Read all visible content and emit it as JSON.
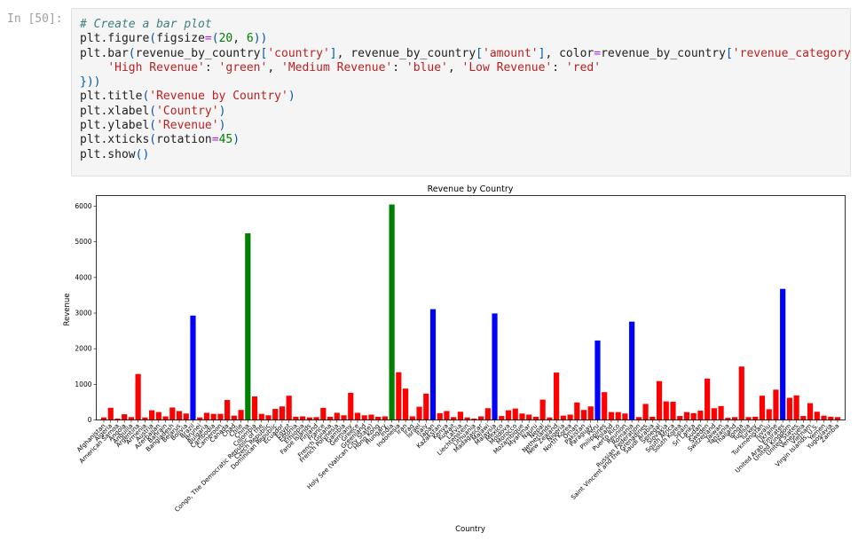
{
  "notebook": {
    "prompt": "In [50]:",
    "code_lines": [
      "# Create a bar plot",
      "plt.figure(figsize=(20, 6))",
      "plt.bar(revenue_by_country['country'], revenue_by_country['amount'], color=revenue_by_country['revenue_category'].map({",
      "    'High Revenue': 'green', 'Medium Revenue': 'blue', 'Low Revenue': 'red'",
      "}))",
      "plt.title('Revenue by Country')",
      "plt.xlabel('Country')",
      "plt.ylabel('Revenue')",
      "plt.xticks(rotation=45)",
      "plt.show()"
    ]
  },
  "colors": {
    "High Revenue": "#008000",
    "Medium Revenue": "#0000ff",
    "Low Revenue": "#ff0000"
  },
  "chart_data": {
    "type": "bar",
    "title": "Revenue by Country",
    "xlabel": "Country",
    "ylabel": "Revenue",
    "ylim": [
      0,
      6300
    ],
    "yticks": [
      0,
      1000,
      2000,
      3000,
      4000,
      5000,
      6000
    ],
    "grid": false,
    "categories": [
      "Afghanistan",
      "Algeria",
      "American Samoa",
      "Angola",
      "Anguilla",
      "Argentina",
      "Armenia",
      "Austria",
      "Azerbaijan",
      "Bahrain",
      "Bangladesh",
      "Belarus",
      "Bolivia",
      "Brazil",
      "Brunei",
      "Bulgaria",
      "Cambodia",
      "Cameroon",
      "Canada",
      "Chad",
      "Chile",
      "China",
      "Colombia",
      "Congo, The Democratic Republic of the",
      "Czech Republic",
      "Dominican Republic",
      "Ecuador",
      "Egypt",
      "Estonia",
      "Ethiopia",
      "Faroe Islands",
      "Finland",
      "France",
      "French Guiana",
      "French Polynesia",
      "Gambia",
      "Germany",
      "Greece",
      "Greenland",
      "Holy See (Vatican City State)",
      "Hong Kong",
      "Hungary",
      "India",
      "Indonesia",
      "Iran",
      "Iraq",
      "Israel",
      "Italy",
      "Japan",
      "Kazakstan",
      "Kenya",
      "Kuwait",
      "Latvia",
      "Liechtenstein",
      "Lithuania",
      "Madagascar",
      "Malawi",
      "Malaysia",
      "Mexico",
      "Moldova",
      "Morocco",
      "Mozambique",
      "Myanmar",
      "Nauru",
      "Nepal",
      "Netherlands",
      "New Zealand",
      "Nigeria",
      "North Korea",
      "Oman",
      "Pakistan",
      "Paraguay",
      "Peru",
      "Philippines",
      "Poland",
      "Puerto Rico",
      "Reunion",
      "Romania",
      "Russian Federation",
      "Saint Vincent and the Grenadines",
      "Saudi Arabia",
      "Senegal",
      "Slovakia",
      "South Africa",
      "South Korea",
      "Spain",
      "Sri Lanka",
      "Sudan",
      "Sweden",
      "Switzerland",
      "Taiwan",
      "Tanzania",
      "Thailand",
      "Tonga",
      "Tunisia",
      "Turkey",
      "Turkmenistan",
      "Tuvalu",
      "Ukraine",
      "United Arab Emirates",
      "United Kingdom",
      "United States",
      "Venezuela",
      "Vietnam",
      "Virgin Islands, U.S.",
      "Yemen",
      "Yugoslavia",
      "Zambia"
    ],
    "tick_labels": [
      "Afghanistan",
      "Algeria",
      "American Samoa",
      "Angola",
      "Anguilla",
      "Argentina",
      "Armenia",
      "Austria",
      "Azerbaijan",
      "Bahrain",
      "Bangladesh",
      "Belarus",
      "Bolivia",
      "Brazil",
      "Brunei",
      "Bulgaria",
      "Cambodia",
      "Cameroon",
      "Canada",
      "Chad",
      "Chile",
      "China",
      "Colombia",
      "Congo, The Democratic Republic of the",
      "Czech Republic",
      "Dominican Republic",
      "Ecuador",
      "Egypt",
      "Estonia",
      "Ethiopia",
      "Faroe Islands",
      "Finland",
      "France",
      "French Guiana",
      "French Polynesia",
      "Gambia",
      "Germany",
      "Greece",
      "Greenland",
      "Holy See (Vatican City State)",
      "Hong Kong",
      "Hungary",
      "India",
      "Indonesia",
      "Iran",
      "Iraq",
      "Israel",
      "Italy",
      "Japan",
      "Kazakstan",
      "Kenya",
      "Kuwait",
      "Latvia",
      "Liechtenstein",
      "Lithuania",
      "Madagascar",
      "Malawi",
      "Malaysia",
      "Mexico",
      "Moldova",
      "Morocco",
      "Mozambique",
      "Myanmar",
      "Nauru",
      "Nepal",
      "Netherlands",
      "New Zealand",
      "Nigeria",
      "North Korea",
      "Oman",
      "Pakistan",
      "Paraguay",
      "Peru",
      "Philippines",
      "Poland",
      "Puerto Rico",
      "Reunion",
      "Romania",
      "Russian Federation",
      "Saint Vincent and the Grenadines",
      "Saudi Arabia",
      "Senegal",
      "Slovakia",
      "South Africa",
      "South Korea",
      "Spain",
      "Sri Lanka",
      "Sudan",
      "Sweden",
      "Switzerland",
      "Taiwan",
      "Tanzania",
      "Thailand",
      "Tonga",
      "Tunisia",
      "Turkey",
      "Turkmenistan",
      "Tuvalu",
      "Ukraine",
      "United Arab Emirates",
      "United Kingdom",
      "United States",
      "Venezuela",
      "Vietnam",
      "Virgin Islands, U.S.",
      "Yemen",
      "Yugoslavia",
      "Zambia"
    ],
    "values": [
      70,
      340,
      40,
      160,
      80,
      1290,
      70,
      270,
      220,
      100,
      350,
      250,
      180,
      2930,
      70,
      200,
      170,
      170,
      560,
      120,
      280,
      5240,
      660,
      170,
      130,
      310,
      380,
      680,
      90,
      100,
      70,
      80,
      340,
      90,
      200,
      130,
      760,
      200,
      130,
      150,
      90,
      100,
      6050,
      1340,
      880,
      100,
      370,
      740,
      3110,
      190,
      250,
      80,
      230,
      70,
      40,
      100,
      330,
      2990,
      110,
      270,
      320,
      180,
      150,
      90,
      570,
      70,
      1330,
      120,
      150,
      490,
      280,
      380,
      2230,
      780,
      220,
      220,
      180,
      2760,
      80,
      450,
      90,
      1090,
      520,
      510,
      110,
      220,
      190,
      260,
      1160,
      330,
      390,
      60,
      80,
      1500,
      80,
      90,
      680,
      300,
      850,
      3680,
      620,
      690,
      110,
      470,
      230,
      120,
      90,
      80
    ],
    "revenue_category": [
      "Low Revenue",
      "Low Revenue",
      "Low Revenue",
      "Low Revenue",
      "Low Revenue",
      "Low Revenue",
      "Low Revenue",
      "Low Revenue",
      "Low Revenue",
      "Low Revenue",
      "Low Revenue",
      "Low Revenue",
      "Low Revenue",
      "Medium Revenue",
      "Low Revenue",
      "Low Revenue",
      "Low Revenue",
      "Low Revenue",
      "Low Revenue",
      "Low Revenue",
      "Low Revenue",
      "High Revenue",
      "Low Revenue",
      "Low Revenue",
      "Low Revenue",
      "Low Revenue",
      "Low Revenue",
      "Low Revenue",
      "Low Revenue",
      "Low Revenue",
      "Low Revenue",
      "Low Revenue",
      "Low Revenue",
      "Low Revenue",
      "Low Revenue",
      "Low Revenue",
      "Low Revenue",
      "Low Revenue",
      "Low Revenue",
      "Low Revenue",
      "Low Revenue",
      "Low Revenue",
      "High Revenue",
      "Low Revenue",
      "Low Revenue",
      "Low Revenue",
      "Low Revenue",
      "Low Revenue",
      "Medium Revenue",
      "Low Revenue",
      "Low Revenue",
      "Low Revenue",
      "Low Revenue",
      "Low Revenue",
      "Low Revenue",
      "Low Revenue",
      "Low Revenue",
      "Medium Revenue",
      "Low Revenue",
      "Low Revenue",
      "Low Revenue",
      "Low Revenue",
      "Low Revenue",
      "Low Revenue",
      "Low Revenue",
      "Low Revenue",
      "Low Revenue",
      "Low Revenue",
      "Low Revenue",
      "Low Revenue",
      "Low Revenue",
      "Low Revenue",
      "Medium Revenue",
      "Low Revenue",
      "Low Revenue",
      "Low Revenue",
      "Low Revenue",
      "Medium Revenue",
      "Low Revenue",
      "Low Revenue",
      "Low Revenue",
      "Low Revenue",
      "Low Revenue",
      "Low Revenue",
      "Low Revenue",
      "Low Revenue",
      "Low Revenue",
      "Low Revenue",
      "Low Revenue",
      "Low Revenue",
      "Low Revenue",
      "Low Revenue",
      "Low Revenue",
      "Low Revenue",
      "Low Revenue",
      "Low Revenue",
      "Low Revenue",
      "Low Revenue",
      "Low Revenue",
      "Medium Revenue",
      "Low Revenue",
      "Low Revenue",
      "Low Revenue",
      "Low Revenue",
      "Low Revenue",
      "Low Revenue",
      "Low Revenue",
      "Low Revenue"
    ]
  }
}
